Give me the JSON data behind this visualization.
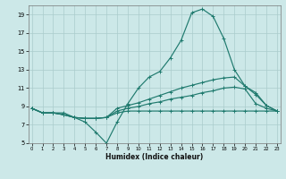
{
  "xlabel": "Humidex (Indice chaleur)",
  "bg_color": "#cce8e8",
  "grid_color": "#aacccc",
  "line_color": "#1f7a6e",
  "xlim_min": -0.3,
  "xlim_max": 23.3,
  "ylim_min": 5,
  "ylim_max": 20,
  "xticks": [
    0,
    1,
    2,
    3,
    4,
    5,
    6,
    7,
    8,
    9,
    10,
    11,
    12,
    13,
    14,
    15,
    16,
    17,
    18,
    19,
    20,
    21,
    22,
    23
  ],
  "yticks": [
    5,
    7,
    9,
    11,
    13,
    15,
    17,
    19
  ],
  "curve_main": [
    8.8,
    8.3,
    8.3,
    8.3,
    7.8,
    7.3,
    6.2,
    5.0,
    7.3,
    9.3,
    11.0,
    12.2,
    12.8,
    14.3,
    16.2,
    19.2,
    19.6,
    18.8,
    16.4,
    13.0,
    11.2,
    10.5,
    9.1,
    8.5
  ],
  "curve_upper": [
    8.8,
    8.3,
    8.3,
    8.1,
    7.8,
    7.7,
    7.7,
    7.8,
    8.8,
    9.1,
    9.4,
    9.8,
    10.2,
    10.6,
    11.0,
    11.3,
    11.6,
    11.9,
    12.1,
    12.2,
    11.2,
    10.3,
    9.1,
    8.5
  ],
  "curve_mid": [
    8.8,
    8.3,
    8.3,
    8.1,
    7.8,
    7.7,
    7.7,
    7.8,
    8.5,
    8.8,
    9.0,
    9.3,
    9.5,
    9.8,
    10.0,
    10.2,
    10.5,
    10.7,
    11.0,
    11.1,
    10.9,
    9.3,
    8.8,
    8.5
  ],
  "curve_flat": [
    8.8,
    8.3,
    8.3,
    8.1,
    7.8,
    7.7,
    7.7,
    7.8,
    8.3,
    8.5,
    8.5,
    8.5,
    8.5,
    8.5,
    8.5,
    8.5,
    8.5,
    8.5,
    8.5,
    8.5,
    8.5,
    8.5,
    8.5,
    8.5
  ]
}
